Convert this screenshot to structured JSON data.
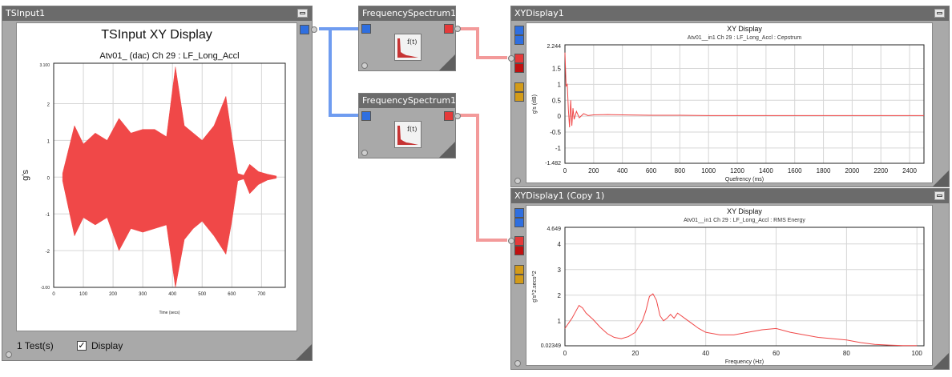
{
  "nodes": {
    "tsinput": {
      "title": "TSInput1",
      "plot_title": "TSInput XY Display",
      "footer_tests": "1 Test(s)",
      "display_label": "Display",
      "display_checked": true
    },
    "freq1": {
      "title": "FrequencySpectrum1"
    },
    "freq2": {
      "title": "FrequencySpectrum1 (..."
    },
    "xy1": {
      "title": "XYDisplay1"
    },
    "xy2": {
      "title": "XYDisplay1 (Copy 1)"
    }
  },
  "colors": {
    "trace": "#f04848",
    "wire_blue": "#6f9cf0",
    "wire_red": "#f39a9a"
  },
  "chart_data": [
    {
      "type": "line",
      "title": "Atv01_ (dac)  Ch 29 : LF_Long_Accl",
      "xlabel": "Time (secs)",
      "ylabel": "g's",
      "xlim": [
        0,
        780
      ],
      "ylim": [
        -3.0,
        3.1
      ],
      "ymin_label": "-3.00",
      "ymax_label": "3.100",
      "xticks": [
        "0",
        "100",
        "200",
        "300",
        "400",
        "500",
        "600",
        "700"
      ],
      "yticks": [
        "2",
        "1",
        "0",
        "-1",
        "-2"
      ],
      "envelope": {
        "x": [
          30,
          70,
          100,
          140,
          180,
          220,
          260,
          300,
          340,
          380,
          410,
          440,
          470,
          500,
          540,
          580,
          600,
          620,
          640,
          660,
          690,
          720,
          750
        ],
        "upper": [
          0.1,
          1.4,
          0.9,
          1.2,
          1.0,
          1.6,
          1.2,
          1.3,
          1.3,
          1.1,
          3.0,
          1.4,
          1.2,
          1.0,
          1.4,
          2.2,
          1.1,
          0.1,
          0.05,
          0.35,
          0.15,
          0.08,
          0.03
        ],
        "lower": [
          -0.1,
          -1.6,
          -1.1,
          -1.3,
          -1.1,
          -2.0,
          -1.4,
          -1.5,
          -1.4,
          -1.3,
          -3.0,
          -1.7,
          -1.4,
          -1.2,
          -1.6,
          -2.1,
          -1.2,
          -0.1,
          -0.05,
          -0.45,
          -0.2,
          -0.08,
          -0.03
        ]
      },
      "grid": true
    },
    {
      "type": "line",
      "title": "XY Display",
      "subtitle": "Atv01__in1  Ch 29 : LF_Long_Accl : Cepstrum",
      "xlabel": "Quefrency (ms)",
      "ylabel": "g's (dB)",
      "xlim": [
        0,
        2500
      ],
      "ylim": [
        -1.482,
        2.244
      ],
      "ymin_label": "-1.482",
      "ymax_label": "2.244",
      "xticks": [
        "0",
        "200",
        "400",
        "600",
        "800",
        "1000",
        "1200",
        "1400",
        "1600",
        "1800",
        "2000",
        "2200",
        "2400"
      ],
      "yticks": [
        "1.5",
        "1",
        "0.5",
        "0",
        "-0.5",
        "-1"
      ],
      "x": [
        0,
        8,
        16,
        24,
        32,
        40,
        48,
        56,
        64,
        80,
        100,
        130,
        160,
        200,
        300,
        400,
        600,
        800,
        1000,
        1500,
        2000,
        2500
      ],
      "y": [
        2.0,
        0.95,
        1.0,
        0.2,
        -0.35,
        0.5,
        -0.3,
        0.25,
        -0.1,
        0.15,
        -0.05,
        0.08,
        0.02,
        0.04,
        0.05,
        0.04,
        0.03,
        0.03,
        0.02,
        0.02,
        0.02,
        0.02
      ],
      "grid": true
    },
    {
      "type": "line",
      "title": "XY Display",
      "subtitle": "Atv01__in1  Ch 29 : LF_Long_Accl : RMS Energy",
      "xlabel": "Frequency (Hz)",
      "ylabel": "g's^2.secs^2",
      "xlim": [
        0,
        102
      ],
      "ylim": [
        0.02349,
        4.649
      ],
      "ymin_label": "0.02349",
      "ymax_label": "4.649",
      "xticks": [
        "0",
        "20",
        "40",
        "60",
        "80",
        "100"
      ],
      "yticks": [
        "4",
        "3",
        "2",
        "1"
      ],
      "x": [
        0,
        1,
        2,
        3,
        4,
        5,
        6,
        8,
        10,
        12,
        14,
        16,
        18,
        20,
        22,
        23,
        24,
        25,
        26,
        27,
        28,
        29,
        30,
        31,
        32,
        34,
        36,
        38,
        40,
        44,
        48,
        52,
        56,
        60,
        64,
        68,
        72,
        76,
        80,
        84,
        88,
        92,
        96,
        100
      ],
      "y": [
        0.7,
        0.9,
        1.1,
        1.35,
        1.6,
        1.5,
        1.3,
        1.05,
        0.75,
        0.5,
        0.35,
        0.3,
        0.38,
        0.55,
        1.0,
        1.4,
        1.95,
        2.05,
        1.8,
        1.2,
        1.0,
        1.1,
        1.25,
        1.1,
        1.3,
        1.1,
        0.9,
        0.7,
        0.55,
        0.45,
        0.45,
        0.55,
        0.65,
        0.7,
        0.55,
        0.45,
        0.35,
        0.3,
        0.25,
        0.15,
        0.08,
        0.05,
        0.03,
        0.03
      ],
      "grid": true
    }
  ]
}
